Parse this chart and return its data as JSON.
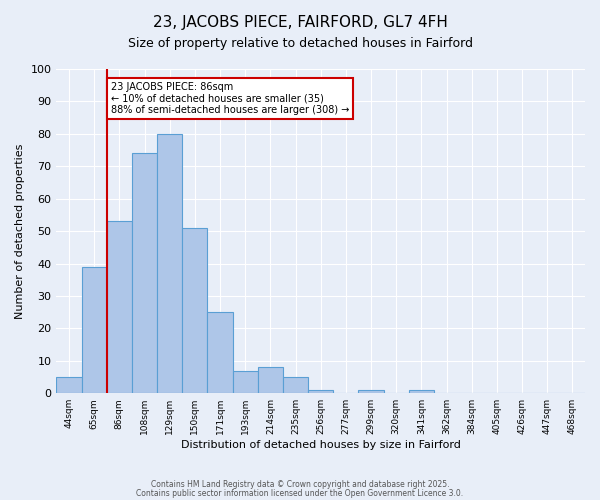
{
  "title": "23, JACOBS PIECE, FAIRFORD, GL7 4FH",
  "subtitle": "Size of property relative to detached houses in Fairford",
  "xlabel": "Distribution of detached houses by size in Fairford",
  "ylabel": "Number of detached properties",
  "bar_values": [
    5,
    39,
    53,
    74,
    80,
    51,
    25,
    7,
    8,
    5,
    1,
    0,
    1,
    0,
    1,
    0,
    0,
    0,
    0,
    0,
    0
  ],
  "bar_labels": [
    "44sqm",
    "65sqm",
    "86sqm",
    "108sqm",
    "129sqm",
    "150sqm",
    "171sqm",
    "193sqm",
    "214sqm",
    "235sqm",
    "256sqm",
    "277sqm",
    "299sqm",
    "320sqm",
    "341sqm",
    "362sqm",
    "384sqm",
    "405sqm",
    "426sqm",
    "447sqm",
    "468sqm"
  ],
  "bar_color": "#aec6e8",
  "bar_edge_color": "#5a9fd4",
  "background_color": "#e8eef8",
  "grid_color": "#ffffff",
  "vline_x_index": 2,
  "vline_color": "#cc0000",
  "annotation_text": "23 JACOBS PIECE: 86sqm\n← 10% of detached houses are smaller (35)\n88% of semi-detached houses are larger (308) →",
  "annotation_box_edgecolor": "#cc0000",
  "ylim": [
    0,
    100
  ],
  "yticks": [
    0,
    10,
    20,
    30,
    40,
    50,
    60,
    70,
    80,
    90,
    100
  ],
  "footer_line1": "Contains HM Land Registry data © Crown copyright and database right 2025.",
  "footer_line2": "Contains public sector information licensed under the Open Government Licence 3.0."
}
